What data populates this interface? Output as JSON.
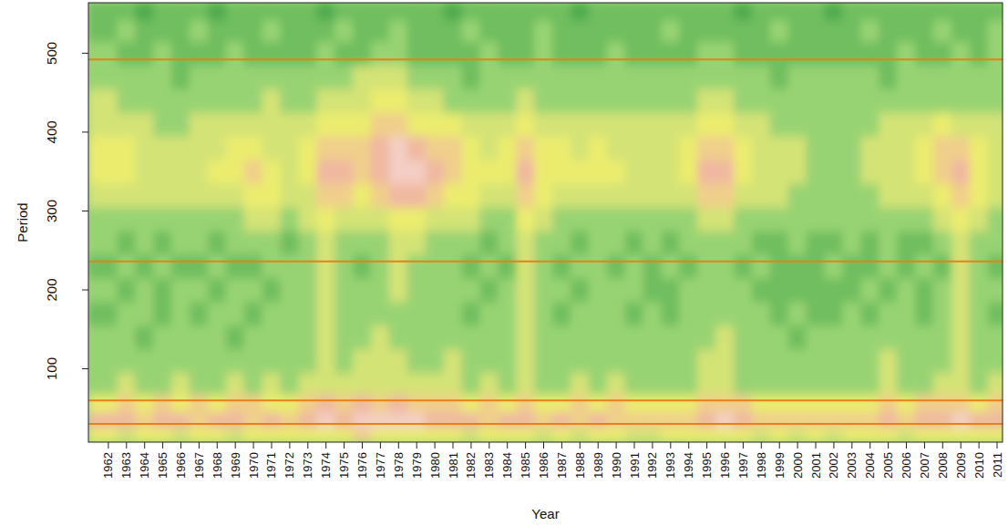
{
  "chart_data": {
    "type": "heatmap",
    "x_label": "Year",
    "y_label": "Period",
    "x": [
      1962,
      1963,
      1964,
      1965,
      1966,
      1967,
      1968,
      1969,
      1970,
      1971,
      1972,
      1973,
      1974,
      1975,
      1976,
      1977,
      1978,
      1979,
      1980,
      1981,
      1982,
      1983,
      1984,
      1985,
      1986,
      1987,
      1988,
      1989,
      1990,
      1991,
      1992,
      1993,
      1994,
      1995,
      1996,
      1997,
      1998,
      1999,
      2000,
      2001,
      2002,
      2003,
      2004,
      2005,
      2006,
      2007,
      2008,
      2009,
      2010,
      2011
    ],
    "y": [
      15,
      35,
      55,
      80,
      110,
      140,
      170,
      200,
      230,
      260,
      290,
      320,
      350,
      380,
      410,
      440,
      470,
      500,
      530,
      555
    ],
    "xlim": [
      1960.9,
      2011.3
    ],
    "ylim": [
      7,
      564
    ],
    "xticks": [
      1962,
      1963,
      1964,
      1965,
      1966,
      1967,
      1968,
      1969,
      1970,
      1971,
      1972,
      1973,
      1974,
      1975,
      1976,
      1977,
      1978,
      1979,
      1980,
      1981,
      1982,
      1983,
      1984,
      1985,
      1986,
      1987,
      1988,
      1989,
      1990,
      1991,
      1992,
      1993,
      1994,
      1995,
      1996,
      1997,
      1998,
      1999,
      2000,
      2001,
      2002,
      2003,
      2004,
      2005,
      2006,
      2007,
      2008,
      2009,
      2010,
      2011
    ],
    "yticks": [
      100,
      200,
      300,
      400,
      500
    ],
    "zlim": [
      0,
      9
    ],
    "hlines": [
      30,
      60,
      236,
      492
    ],
    "cells": [
      [
        5,
        4,
        5,
        5,
        4,
        5,
        5,
        4,
        5,
        5,
        5,
        5,
        5,
        5,
        6,
        5,
        5,
        5,
        5,
        5,
        4,
        5,
        5,
        5,
        4,
        5,
        4,
        5,
        5,
        4,
        4,
        5,
        5,
        5,
        5,
        5,
        4,
        5,
        4,
        5,
        4,
        5,
        5,
        5,
        4,
        5,
        5,
        5,
        5,
        5
      ],
      [
        7,
        7,
        6,
        7,
        7,
        6,
        7,
        7,
        6,
        7,
        6,
        7,
        8,
        7,
        8,
        8,
        8,
        8,
        7,
        7,
        7,
        6,
        7,
        7,
        6,
        7,
        6,
        7,
        6,
        6,
        6,
        6,
        6,
        7,
        8,
        7,
        6,
        6,
        6,
        6,
        6,
        6,
        6,
        7,
        6,
        7,
        7,
        8,
        7,
        7
      ],
      [
        5,
        6,
        5,
        6,
        5,
        6,
        5,
        6,
        6,
        5,
        5,
        6,
        7,
        6,
        7,
        6,
        7,
        6,
        6,
        6,
        5,
        6,
        5,
        6,
        5,
        5,
        6,
        5,
        6,
        5,
        5,
        5,
        5,
        6,
        6,
        6,
        5,
        5,
        5,
        5,
        5,
        5,
        5,
        6,
        5,
        6,
        6,
        6,
        5,
        6
      ],
      [
        3,
        4,
        3,
        3,
        4,
        3,
        3,
        4,
        3,
        4,
        3,
        4,
        4,
        4,
        4,
        4,
        4,
        4,
        4,
        4,
        3,
        4,
        3,
        4,
        3,
        3,
        4,
        3,
        4,
        3,
        3,
        3,
        3,
        4,
        4,
        3,
        3,
        3,
        3,
        3,
        3,
        3,
        3,
        4,
        3,
        3,
        4,
        4,
        3,
        4
      ],
      [
        3,
        3,
        3,
        3,
        3,
        3,
        3,
        3,
        3,
        3,
        3,
        3,
        4,
        3,
        4,
        4,
        4,
        3,
        3,
        4,
        3,
        3,
        3,
        4,
        3,
        3,
        3,
        3,
        3,
        3,
        3,
        3,
        3,
        4,
        4,
        3,
        3,
        3,
        3,
        3,
        3,
        3,
        3,
        4,
        3,
        3,
        3,
        4,
        3,
        3
      ],
      [
        3,
        3,
        2,
        3,
        3,
        3,
        3,
        2,
        3,
        3,
        3,
        3,
        4,
        3,
        3,
        4,
        3,
        3,
        3,
        3,
        3,
        3,
        3,
        4,
        3,
        3,
        3,
        3,
        3,
        3,
        3,
        3,
        3,
        3,
        4,
        3,
        3,
        3,
        2,
        3,
        3,
        3,
        3,
        3,
        3,
        3,
        3,
        4,
        3,
        3
      ],
      [
        2,
        3,
        3,
        2,
        3,
        2,
        3,
        3,
        2,
        3,
        3,
        3,
        4,
        3,
        3,
        3,
        3,
        3,
        3,
        3,
        2,
        3,
        3,
        4,
        3,
        2,
        3,
        3,
        3,
        2,
        3,
        2,
        3,
        3,
        3,
        3,
        3,
        2,
        3,
        2,
        2,
        3,
        2,
        3,
        3,
        2,
        3,
        4,
        3,
        2
      ],
      [
        3,
        2,
        3,
        2,
        3,
        3,
        2,
        3,
        3,
        2,
        3,
        3,
        4,
        3,
        3,
        3,
        4,
        3,
        3,
        3,
        3,
        2,
        3,
        4,
        3,
        3,
        2,
        3,
        3,
        3,
        2,
        2,
        3,
        3,
        3,
        3,
        2,
        2,
        2,
        2,
        2,
        2,
        3,
        2,
        3,
        2,
        3,
        4,
        3,
        3
      ],
      [
        2,
        3,
        2,
        3,
        2,
        2,
        3,
        2,
        2,
        3,
        3,
        3,
        4,
        3,
        2,
        3,
        4,
        3,
        3,
        3,
        2,
        3,
        2,
        4,
        3,
        2,
        3,
        3,
        2,
        3,
        2,
        3,
        2,
        3,
        3,
        2,
        3,
        2,
        2,
        2,
        3,
        2,
        2,
        3,
        2,
        3,
        2,
        4,
        3,
        2
      ],
      [
        3,
        2,
        3,
        2,
        3,
        3,
        2,
        3,
        3,
        3,
        2,
        3,
        4,
        3,
        3,
        3,
        4,
        4,
        3,
        3,
        3,
        2,
        3,
        4,
        3,
        3,
        2,
        3,
        3,
        2,
        3,
        2,
        3,
        3,
        3,
        3,
        2,
        2,
        3,
        2,
        2,
        3,
        2,
        3,
        2,
        2,
        3,
        4,
        3,
        3
      ],
      [
        3,
        3,
        3,
        3,
        3,
        3,
        3,
        3,
        4,
        4,
        3,
        4,
        5,
        4,
        4,
        4,
        5,
        5,
        4,
        4,
        4,
        3,
        3,
        5,
        4,
        3,
        3,
        3,
        3,
        3,
        3,
        3,
        3,
        4,
        4,
        3,
        3,
        3,
        3,
        3,
        3,
        3,
        3,
        3,
        3,
        3,
        4,
        5,
        4,
        3
      ],
      [
        4,
        4,
        4,
        4,
        4,
        4,
        4,
        4,
        5,
        5,
        4,
        4,
        6,
        6,
        5,
        6,
        7,
        7,
        6,
        5,
        5,
        4,
        4,
        6,
        5,
        4,
        4,
        4,
        4,
        4,
        4,
        4,
        4,
        6,
        6,
        4,
        4,
        4,
        3,
        3,
        3,
        3,
        3,
        4,
        4,
        4,
        5,
        6,
        5,
        4
      ],
      [
        5,
        5,
        4,
        4,
        4,
        4,
        5,
        5,
        6,
        5,
        4,
        5,
        7,
        7,
        6,
        7,
        8,
        8,
        7,
        6,
        5,
        5,
        5,
        7,
        5,
        5,
        5,
        5,
        5,
        4,
        4,
        4,
        5,
        7,
        7,
        5,
        4,
        4,
        4,
        3,
        3,
        3,
        4,
        4,
        4,
        5,
        6,
        7,
        5,
        4
      ],
      [
        5,
        5,
        4,
        4,
        4,
        4,
        4,
        5,
        5,
        4,
        4,
        5,
        6,
        6,
        6,
        7,
        8,
        7,
        6,
        6,
        5,
        4,
        5,
        6,
        5,
        5,
        4,
        5,
        4,
        4,
        4,
        4,
        5,
        6,
        6,
        5,
        4,
        4,
        4,
        3,
        3,
        3,
        4,
        4,
        4,
        5,
        6,
        6,
        5,
        4
      ],
      [
        4,
        4,
        4,
        3,
        3,
        4,
        4,
        4,
        4,
        4,
        4,
        4,
        5,
        5,
        5,
        6,
        6,
        5,
        5,
        5,
        4,
        4,
        4,
        5,
        4,
        4,
        4,
        4,
        4,
        4,
        4,
        4,
        4,
        5,
        5,
        4,
        4,
        3,
        3,
        3,
        3,
        3,
        3,
        4,
        4,
        4,
        5,
        4,
        4,
        4
      ],
      [
        4,
        3,
        3,
        3,
        3,
        3,
        3,
        3,
        3,
        4,
        3,
        3,
        4,
        4,
        4,
        5,
        5,
        4,
        4,
        3,
        3,
        3,
        3,
        4,
        3,
        3,
        3,
        3,
        3,
        3,
        3,
        3,
        3,
        4,
        4,
        3,
        3,
        3,
        3,
        3,
        3,
        3,
        3,
        3,
        3,
        3,
        3,
        3,
        3,
        3
      ],
      [
        3,
        3,
        3,
        3,
        2,
        3,
        3,
        3,
        3,
        3,
        3,
        3,
        3,
        3,
        4,
        4,
        4,
        3,
        3,
        3,
        2,
        3,
        3,
        3,
        3,
        3,
        3,
        3,
        3,
        3,
        3,
        3,
        3,
        3,
        3,
        3,
        3,
        2,
        3,
        3,
        3,
        3,
        3,
        2,
        3,
        3,
        3,
        3,
        3,
        3
      ],
      [
        3,
        2,
        2,
        3,
        2,
        2,
        2,
        3,
        2,
        2,
        2,
        2,
        3,
        2,
        2,
        3,
        3,
        2,
        2,
        2,
        2,
        3,
        2,
        2,
        3,
        2,
        2,
        2,
        3,
        2,
        2,
        2,
        2,
        3,
        3,
        2,
        2,
        2,
        2,
        2,
        2,
        2,
        2,
        2,
        3,
        2,
        2,
        3,
        2,
        3
      ],
      [
        2,
        3,
        2,
        2,
        2,
        3,
        2,
        2,
        2,
        3,
        2,
        2,
        2,
        3,
        2,
        2,
        3,
        2,
        2,
        2,
        3,
        2,
        2,
        2,
        3,
        2,
        2,
        2,
        2,
        2,
        2,
        3,
        2,
        2,
        2,
        2,
        2,
        3,
        2,
        2,
        2,
        2,
        3,
        2,
        2,
        2,
        3,
        2,
        2,
        3
      ],
      [
        2,
        2,
        1,
        2,
        2,
        2,
        1,
        2,
        2,
        2,
        2,
        2,
        1,
        2,
        2,
        2,
        2,
        2,
        2,
        1,
        2,
        2,
        2,
        2,
        2,
        2,
        1,
        2,
        2,
        2,
        2,
        2,
        2,
        2,
        2,
        1,
        2,
        2,
        2,
        2,
        1,
        2,
        2,
        2,
        2,
        2,
        2,
        2,
        2,
        2
      ]
    ]
  }
}
